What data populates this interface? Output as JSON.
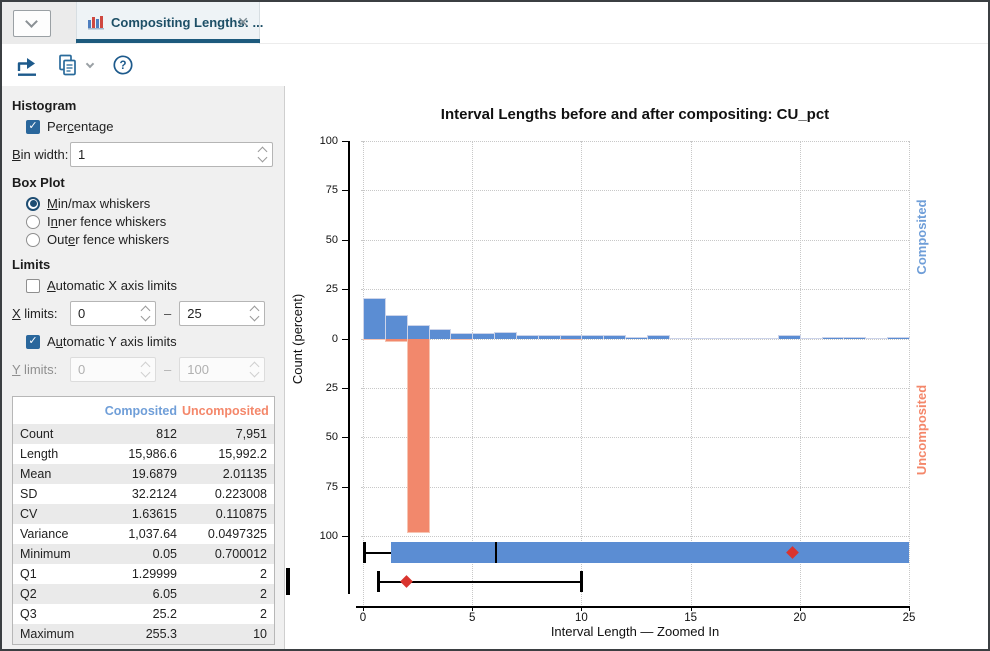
{
  "window": {
    "tab_title": "Compositing Lengths: ...",
    "close_glyph": "✕",
    "check_glyph": "✓"
  },
  "toolbar": {
    "export_icon": "export-arrow",
    "copy_icon": "copy-pages",
    "copy_dropdown_icon": "chevron-down",
    "help_icon": "question-circle",
    "help_glyph": "?"
  },
  "sidebar": {
    "histogram_header": "Histogram",
    "percentage": {
      "pre": "Per",
      "accel": "c",
      "post": "entage",
      "checked": true
    },
    "bin_width_label": {
      "pre": "",
      "accel": "B",
      "post": "in width:"
    },
    "bin_width_value": "1",
    "boxplot_header": "Box Plot",
    "radios": [
      {
        "pre": "",
        "accel": "M",
        "post": "in/max whiskers",
        "selected": true
      },
      {
        "pre": "I",
        "accel": "n",
        "post": "ner fence whiskers",
        "selected": false
      },
      {
        "pre": "Out",
        "accel": "e",
        "post": "r fence whiskers",
        "selected": false
      }
    ],
    "limits_header": "Limits",
    "auto_x": {
      "pre": "",
      "accel": "A",
      "post": "utomatic X axis limits",
      "checked": false
    },
    "x_limits_label": {
      "pre": "",
      "accel": "X",
      "post": " limits:"
    },
    "x_min": "0",
    "x_max": "25",
    "range_separator": "–",
    "auto_y": {
      "pre": "A",
      "accel": "u",
      "post": "tomatic Y axis limits",
      "checked": true
    },
    "y_limits_label": {
      "pre": "",
      "accel": "Y",
      "post": " limits:"
    },
    "y_min": "0",
    "y_max": "100"
  },
  "stats_table": {
    "headers": [
      "",
      "Composited",
      "Uncomposited"
    ],
    "rows": [
      [
        "Count",
        "812",
        "7,951"
      ],
      [
        "Length",
        "15,986.6",
        "15,992.2"
      ],
      [
        "Mean",
        "19.6879",
        "2.01135"
      ],
      [
        "SD",
        "32.2124",
        "0.223008"
      ],
      [
        "CV",
        "1.63615",
        "0.110875"
      ],
      [
        "Variance",
        "1,037.64",
        "0.0497325"
      ],
      [
        "Minimum",
        "0.05",
        "0.700012"
      ],
      [
        "Q1",
        "1.29999",
        "2"
      ],
      [
        "Q2",
        "6.05",
        "2"
      ],
      [
        "Q3",
        "25.2",
        "2"
      ],
      [
        "Maximum",
        "255.3",
        "10"
      ]
    ]
  },
  "chart_data": {
    "type": "bar",
    "subtype": "mirrored-histogram-with-boxplots",
    "title": "Interval Lengths before and after compositing: CU_pct",
    "xlabel": "Interval Length — Zoomed In",
    "ylabel": "Count (percent)",
    "bin_width": 1,
    "xlim": [
      0,
      25
    ],
    "ylim_percent": [
      -100,
      100
    ],
    "x_ticks": [
      0,
      5,
      10,
      15,
      20,
      25
    ],
    "y_tick_labels": [
      "100",
      "75",
      "50",
      "25",
      "0",
      "25",
      "50",
      "75",
      "100"
    ],
    "grid": true,
    "series": [
      {
        "name": "Composited",
        "color": "#5b8dd3",
        "direction": "up",
        "bin_start": 0,
        "values_percent": [
          20.8,
          12,
          7.2,
          4.9,
          3.2,
          3.2,
          3.5,
          2.1,
          2.1,
          2.1,
          2.1,
          2.2,
          0.9,
          2.1,
          0.6,
          0.6,
          0.6,
          0.7,
          0.7,
          2.0,
          0.4,
          1.0,
          1.0,
          0.4,
          0.8
        ]
      },
      {
        "name": "Uncomposited",
        "color": "#f2886c",
        "direction": "down",
        "bin_start": 0,
        "values_percent": [
          0.4,
          1.3,
          98,
          0,
          0.6,
          0,
          0,
          0,
          0,
          0.3,
          0,
          0,
          0,
          0,
          0,
          0,
          0,
          0,
          0,
          0,
          0,
          0,
          0,
          0,
          0
        ]
      }
    ],
    "boxplots": [
      {
        "name": "Composited",
        "min": 0.05,
        "q1": 1.29999,
        "median": 6.05,
        "q3": 25.2,
        "max": 255.3,
        "mean": 19.6879,
        "style": "filled-blue",
        "clipped_right": true
      },
      {
        "name": "Uncomposited",
        "min": 0.700012,
        "q1": 2,
        "median": 2,
        "q3": 2,
        "max": 10,
        "mean": 2.01135,
        "style": "black-line"
      }
    ],
    "right_labels": [
      {
        "text": "Composited",
        "color": "#6f9ed8"
      },
      {
        "text": "Uncomposited",
        "color": "#f4876a"
      }
    ]
  }
}
